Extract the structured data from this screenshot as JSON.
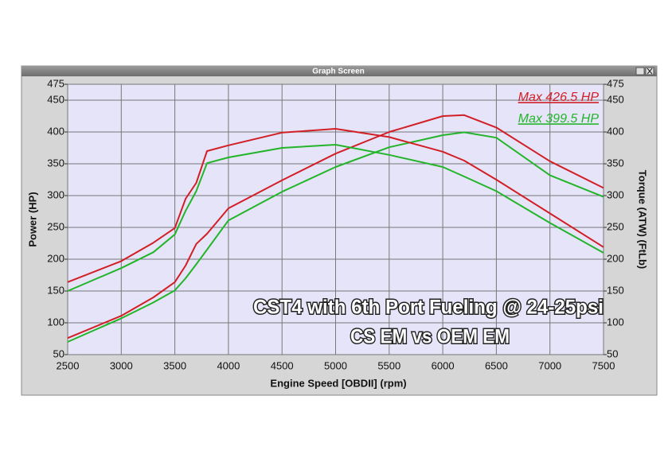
{
  "window_title": "Graph Screen",
  "chart_data": {
    "type": "line",
    "xlabel": "Engine Speed [OBDII] (rpm)",
    "ylabel": "Power (HP)",
    "y2label": "Torque (ATW) (FtLb)",
    "x": [
      2500,
      3000,
      3300,
      3500,
      3600,
      3700,
      3800,
      4000,
      4500,
      5000,
      5500,
      6000,
      6200,
      6500,
      7000,
      7500
    ],
    "xlim": [
      2500,
      7500
    ],
    "xticks": [
      2500,
      3000,
      3500,
      4000,
      4500,
      5000,
      5500,
      6000,
      6500,
      7000,
      7500
    ],
    "ylim": [
      50,
      475
    ],
    "yticks": [
      50,
      100,
      150,
      200,
      250,
      300,
      350,
      400,
      450,
      475
    ],
    "y2lim": [
      50,
      475
    ],
    "y2ticks": [
      50,
      100,
      150,
      200,
      250,
      300,
      350,
      400,
      450,
      475
    ],
    "grid": true,
    "series": [
      {
        "color": "#d21f26",
        "values": [
          76,
          111,
          140,
          164,
          190,
          224,
          240,
          280,
          324,
          366,
          400,
          425,
          426.5,
          407,
          354,
          312
        ]
      },
      {
        "color": "#22b52a",
        "values": [
          70,
          107,
          132,
          151,
          170,
          192,
          215,
          261,
          306,
          345,
          376,
          395,
          399.5,
          391,
          332,
          298
        ]
      },
      {
        "color": "#d21f26",
        "axis": "y2",
        "values": [
          164,
          197,
          226,
          249,
          295,
          320,
          370,
          379,
          399,
          405,
          392,
          369,
          355,
          325,
          272,
          219
        ]
      },
      {
        "color": "#22b52a",
        "axis": "y2",
        "values": [
          150,
          186,
          211,
          239,
          276,
          307,
          351,
          360,
          375,
          380,
          364,
          345,
          330,
          307,
          257,
          210
        ]
      }
    ],
    "annotations": [
      {
        "text": "Max 426.5 HP",
        "color": "#d21f26"
      },
      {
        "text": "Max 399.5 HP",
        "color": "#22b52a"
      },
      {
        "text": "CST4 with 6th Port Fueling @ 24-25psi",
        "color": "#ffffff"
      },
      {
        "text": "CS EM vs OEM EM",
        "color": "#ffffff"
      }
    ]
  }
}
